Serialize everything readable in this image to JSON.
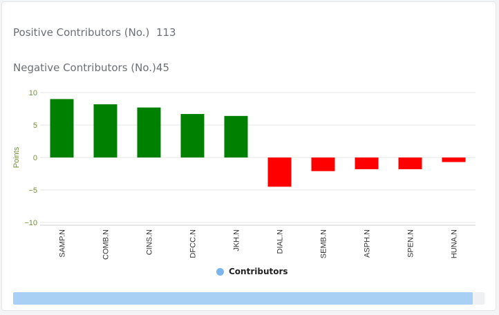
{
  "stats": {
    "positive_label": "Positive Contributors (No.)",
    "positive_value": "113",
    "negative_label": "Negative Contributors (No.)",
    "negative_value": "45"
  },
  "colors": {
    "positive": "#008000",
    "negative": "#ff0000",
    "legend": "#7cb5ec",
    "axis_text": "#6f8f3a",
    "grid": "#e6e6e6"
  },
  "legend": {
    "label": "Contributors"
  },
  "chart_data": {
    "type": "bar",
    "categories": [
      "SAMP.N",
      "COMB.N",
      "CINS.N",
      "DFCC.N",
      "JKH.N",
      "DIAL.N",
      "SEMB.N",
      "ASPH.N",
      "SPEN.N",
      "HUNA.N"
    ],
    "series": [
      {
        "name": "Contributors",
        "values": [
          9.0,
          8.2,
          7.7,
          6.7,
          6.4,
          -4.5,
          -2.1,
          -1.8,
          -1.8,
          -0.7
        ]
      }
    ],
    "ylabel": "Points",
    "yticks": [
      10,
      5,
      0,
      -5,
      -10
    ],
    "ytick_labels": [
      "10",
      "5",
      "0",
      "−5",
      "−10"
    ],
    "ylim": [
      -10,
      10
    ],
    "grid": true,
    "legend_position": "bottom-center"
  }
}
